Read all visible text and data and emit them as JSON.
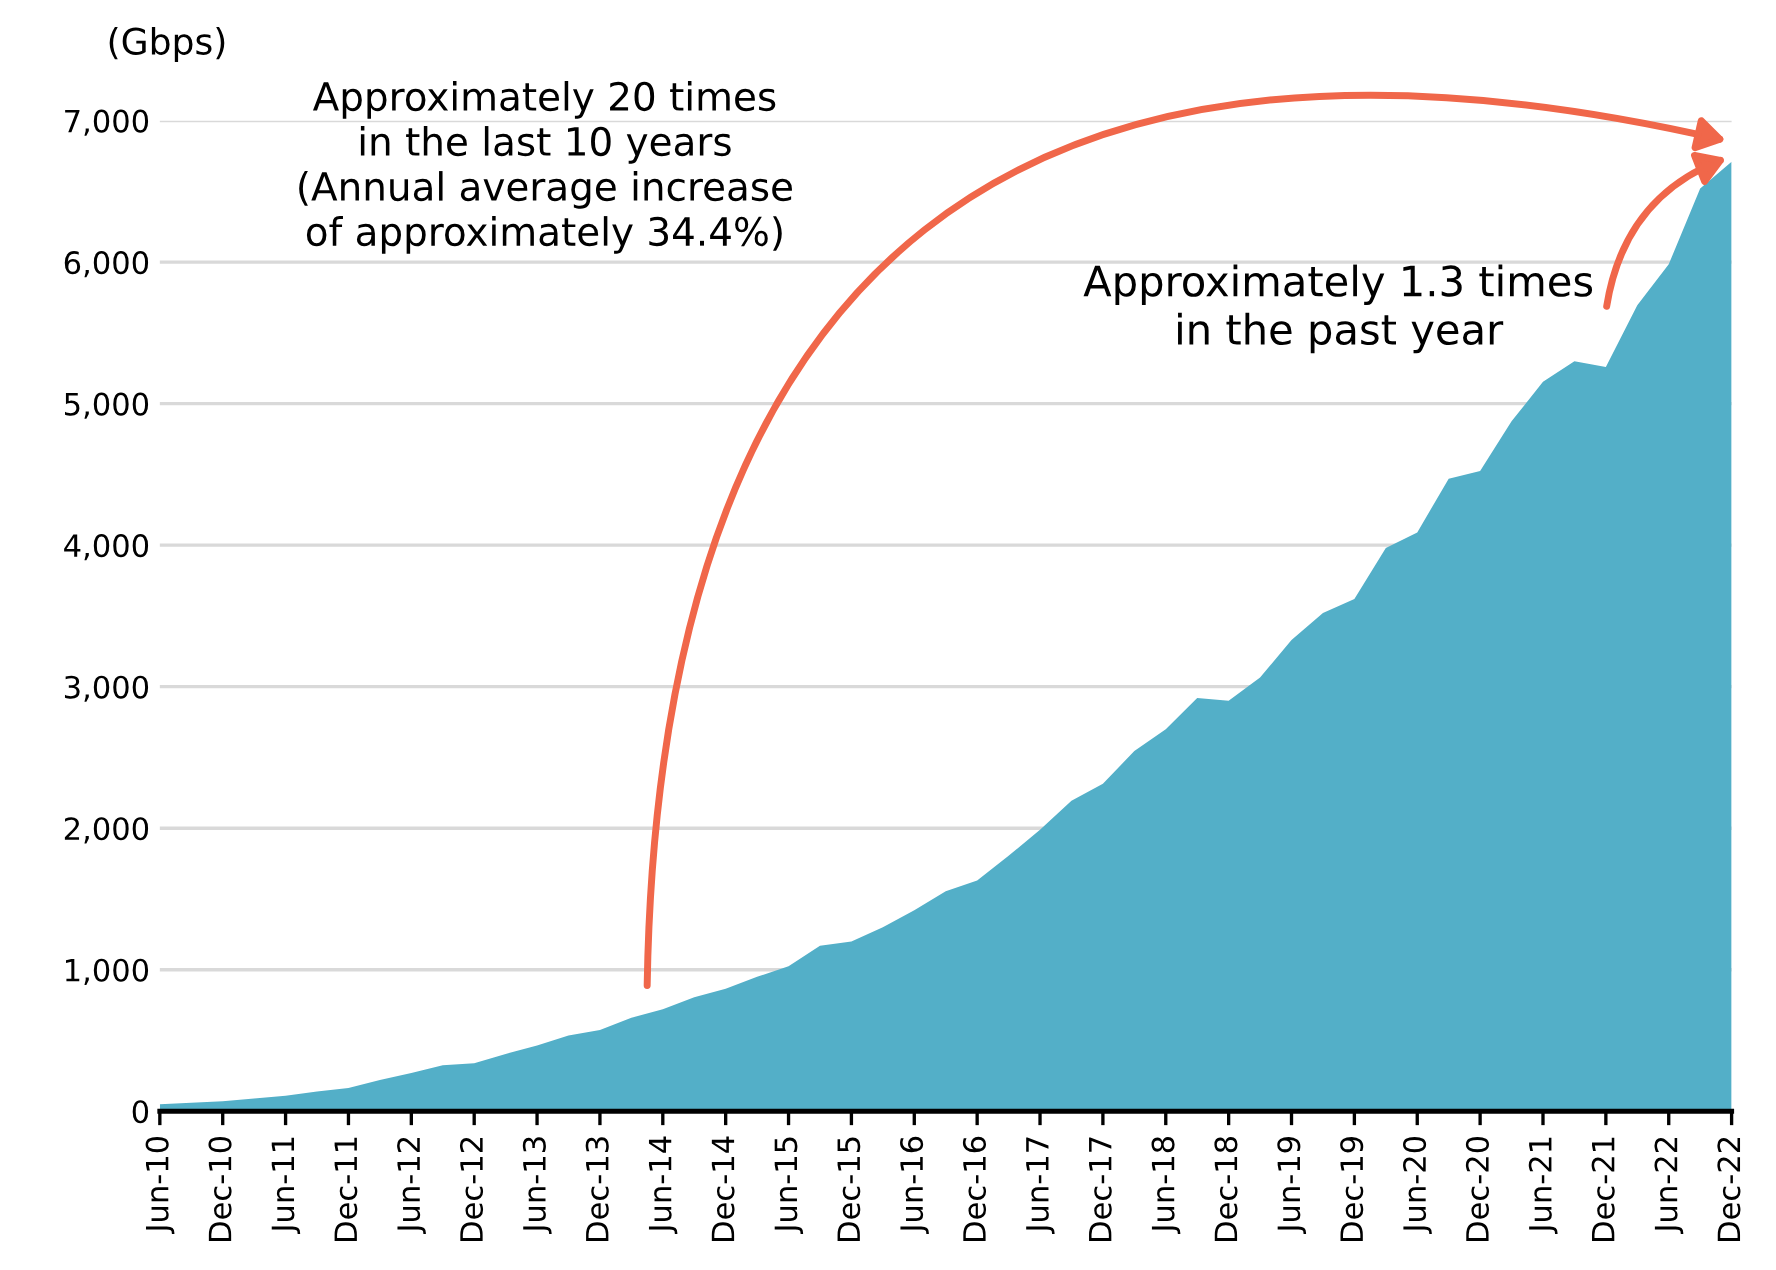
{
  "chart_data": {
    "type": "area",
    "ylabel": "(Gbps)",
    "categories": [
      "Jun-10",
      null,
      "Dec-10",
      null,
      "Jun-11",
      null,
      "Dec-11",
      null,
      "Jun-12",
      null,
      "Dec-12",
      null,
      "Jun-13",
      null,
      "Dec-13",
      null,
      "Jun-14",
      null,
      "Dec-14",
      null,
      "Jun-15",
      null,
      "Dec-15",
      null,
      "Jun-16",
      null,
      "Dec-16",
      null,
      "Jun-17",
      null,
      "Dec-17",
      null,
      "Jun-18",
      null,
      "Dec-18",
      null,
      "Jun-19",
      null,
      "Dec-19",
      null,
      "Jun-20",
      null,
      "Dec-20",
      null,
      "Jun-21",
      null,
      "Dec-21",
      null,
      "Jun-22",
      null,
      "Dec-22"
    ],
    "series": [
      {
        "color": "#53afc8",
        "values": [
          50,
          60,
          70,
          90,
          110,
          140,
          165,
          220,
          270,
          325,
          340,
          405,
          465,
          535,
          575,
          660,
          720,
          805,
          865,
          950,
          1025,
          1170,
          1200,
          1300,
          1420,
          1555,
          1630,
          1805,
          1990,
          2195,
          2315,
          2545,
          2700,
          2920,
          2900,
          3065,
          3330,
          3520,
          3620,
          3980,
          4090,
          4470,
          4525,
          4875,
          5155,
          5300,
          5260,
          5695,
          5985,
          6520,
          6710
        ]
      }
    ],
    "ylim": [
      0,
      7000
    ],
    "yticks": [
      {
        "value": 0,
        "label": "0"
      },
      {
        "value": 1000,
        "label": "1,000"
      },
      {
        "value": 2000,
        "label": "2,000"
      },
      {
        "value": 3000,
        "label": "3,000"
      },
      {
        "value": 4000,
        "label": "4,000"
      },
      {
        "value": 5000,
        "label": "5,000"
      },
      {
        "value": 6000,
        "label": "6,000"
      },
      {
        "value": 7000,
        "label": "7,000"
      }
    ],
    "grid": "y",
    "annotations": [
      "Approximately 20 times\nin the last 10 years\n(Annual average increase\nof approximately 34.4%)",
      "Approximately 1.3 times\nin the past year"
    ]
  }
}
